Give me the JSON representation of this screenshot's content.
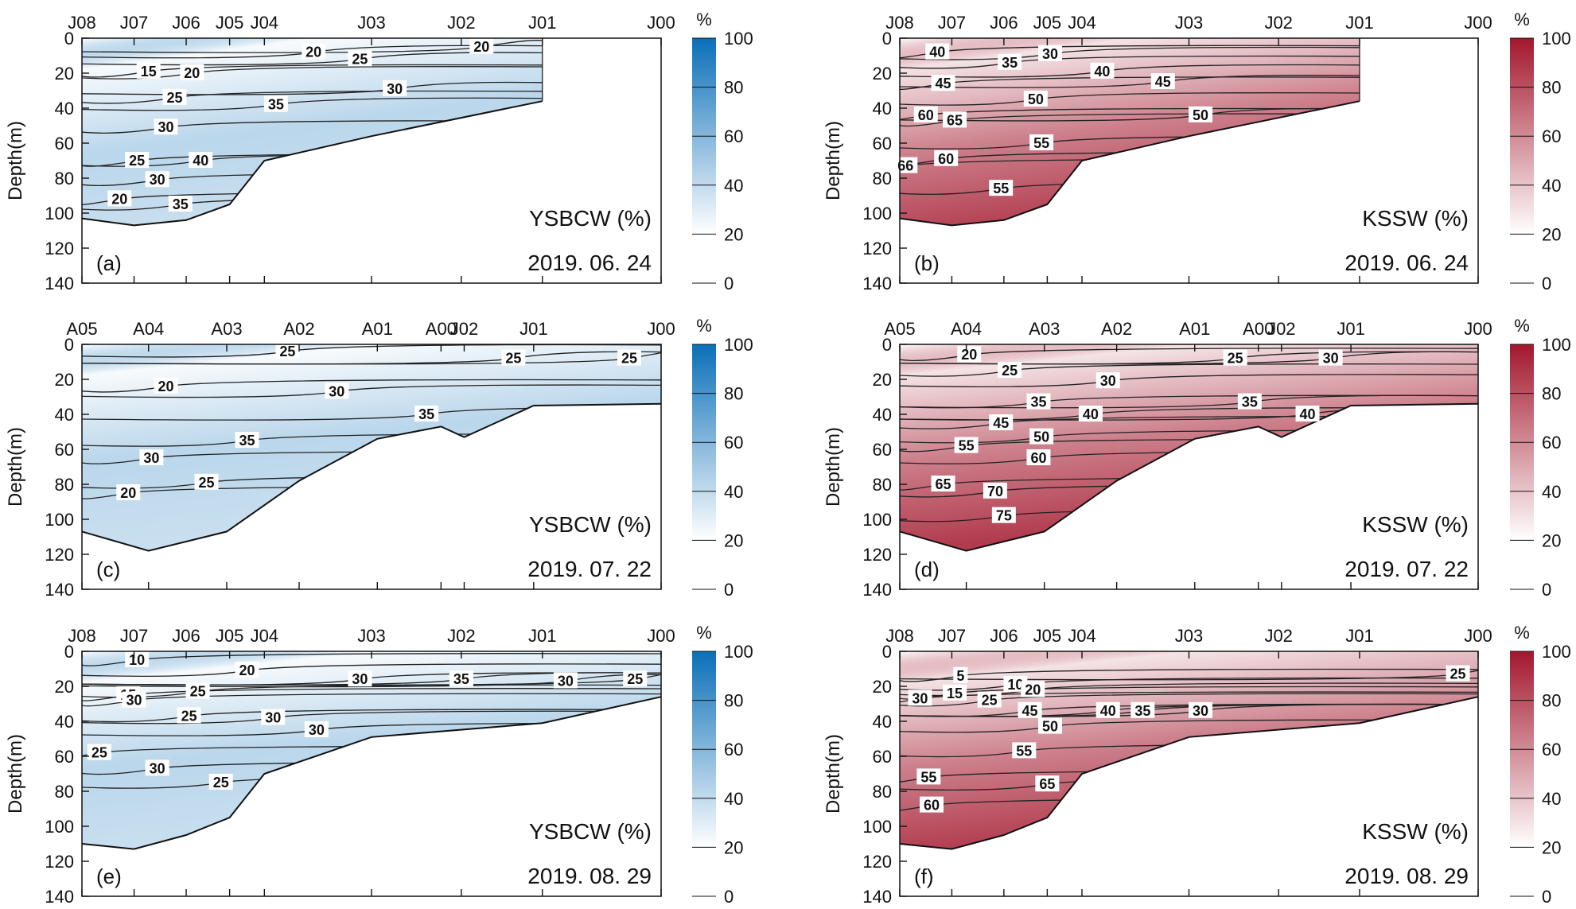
{
  "figure": {
    "colorbar_unit": "%",
    "colorbar_ticks": [
      "100",
      "80",
      "60",
      "40",
      "20",
      "0"
    ],
    "palettes": {
      "blue": [
        "#ffffff",
        "#0a6fb8"
      ],
      "red": [
        "#ffffff",
        "#a3172d"
      ]
    }
  },
  "chart_data": [
    {
      "panel": "(a)",
      "type": "heatmap",
      "palette": "blue",
      "variable": "YSBCW (%)",
      "date": "2019. 06. 24",
      "ylabel": "Depth(m)",
      "ylim": [
        0,
        140
      ],
      "yticks": [
        "0",
        "20",
        "40",
        "60",
        "80",
        "100",
        "120",
        "140"
      ],
      "stations": [
        "J08",
        "J07",
        "J06",
        "J05",
        "J04",
        "J03",
        "J02",
        "J01",
        "J00"
      ],
      "station_positions": [
        0,
        0.09,
        0.18,
        0.255,
        0.315,
        0.5,
        0.655,
        0.795,
        1.0
      ],
      "data_extent": 0.795,
      "bottom_profile": [
        [
          0,
          103
        ],
        [
          0.09,
          107
        ],
        [
          0.18,
          104
        ],
        [
          0.255,
          95
        ],
        [
          0.315,
          70
        ],
        [
          0.5,
          56
        ],
        [
          0.795,
          36
        ]
      ],
      "contour_labels": [
        {
          "text": "15",
          "s": 0.115,
          "d": 19
        },
        {
          "text": "20",
          "s": 0.19,
          "d": 20
        },
        {
          "text": "20",
          "s": 0.4,
          "d": 8
        },
        {
          "text": "20",
          "s": 0.69,
          "d": 5
        },
        {
          "text": "25",
          "s": 0.48,
          "d": 12
        },
        {
          "text": "25",
          "s": 0.16,
          "d": 34
        },
        {
          "text": "30",
          "s": 0.54,
          "d": 29
        },
        {
          "text": "30",
          "s": 0.145,
          "d": 51
        },
        {
          "text": "35",
          "s": 0.335,
          "d": 38
        },
        {
          "text": "40",
          "s": 0.205,
          "d": 70
        },
        {
          "text": "25",
          "s": 0.095,
          "d": 70
        },
        {
          "text": "30",
          "s": 0.13,
          "d": 81
        },
        {
          "text": "35",
          "s": 0.17,
          "d": 95
        },
        {
          "text": "20",
          "s": 0.065,
          "d": 92
        }
      ]
    },
    {
      "panel": "(b)",
      "type": "heatmap",
      "palette": "red",
      "variable": "KSSW (%)",
      "date": "2019. 06. 24",
      "ylabel": "Depth(m)",
      "ylim": [
        0,
        140
      ],
      "yticks": [
        "0",
        "20",
        "40",
        "60",
        "80",
        "100",
        "120",
        "140"
      ],
      "stations": [
        "J08",
        "J07",
        "J06",
        "J05",
        "J04",
        "J03",
        "J02",
        "J01",
        "J00"
      ],
      "station_positions": [
        0,
        0.09,
        0.18,
        0.255,
        0.315,
        0.5,
        0.655,
        0.795,
        1.0
      ],
      "data_extent": 0.795,
      "bottom_profile": [
        [
          0,
          103
        ],
        [
          0.09,
          107
        ],
        [
          0.18,
          104
        ],
        [
          0.255,
          95
        ],
        [
          0.315,
          70
        ],
        [
          0.5,
          56
        ],
        [
          0.795,
          36
        ]
      ],
      "contour_labels": [
        {
          "text": "40",
          "s": 0.065,
          "d": 8
        },
        {
          "text": "35",
          "s": 0.19,
          "d": 14
        },
        {
          "text": "30",
          "s": 0.26,
          "d": 9
        },
        {
          "text": "45",
          "s": 0.075,
          "d": 26
        },
        {
          "text": "40",
          "s": 0.35,
          "d": 19
        },
        {
          "text": "45",
          "s": 0.455,
          "d": 25
        },
        {
          "text": "50",
          "s": 0.235,
          "d": 35
        },
        {
          "text": "50",
          "s": 0.52,
          "d": 44
        },
        {
          "text": "60",
          "s": 0.045,
          "d": 44
        },
        {
          "text": "65",
          "s": 0.095,
          "d": 47
        },
        {
          "text": "55",
          "s": 0.245,
          "d": 60
        },
        {
          "text": "60",
          "s": 0.08,
          "d": 69
        },
        {
          "text": "66",
          "s": 0.01,
          "d": 73
        },
        {
          "text": "55",
          "s": 0.175,
          "d": 86
        }
      ]
    },
    {
      "panel": "(c)",
      "type": "heatmap",
      "palette": "blue",
      "variable": "YSBCW (%)",
      "date": "2019. 07. 22",
      "ylabel": "Depth(m)",
      "ylim": [
        0,
        140
      ],
      "yticks": [
        "0",
        "20",
        "40",
        "60",
        "80",
        "100",
        "120",
        "140"
      ],
      "stations": [
        "A05",
        "A04",
        "A03",
        "A02",
        "A01",
        "A00",
        "J02",
        "J01",
        "J00"
      ],
      "station_positions": [
        0,
        0.115,
        0.25,
        0.375,
        0.51,
        0.62,
        0.66,
        0.78,
        1.0
      ],
      "data_extent": 1.0,
      "bottom_profile": [
        [
          0,
          107
        ],
        [
          0.115,
          118
        ],
        [
          0.25,
          107
        ],
        [
          0.375,
          78
        ],
        [
          0.51,
          54
        ],
        [
          0.62,
          47
        ],
        [
          0.66,
          53
        ],
        [
          0.78,
          35
        ],
        [
          1.0,
          34
        ]
      ],
      "contour_labels": [
        {
          "text": "25",
          "s": 0.355,
          "d": 4
        },
        {
          "text": "25",
          "s": 0.745,
          "d": 8
        },
        {
          "text": "25",
          "s": 0.945,
          "d": 8
        },
        {
          "text": "20",
          "s": 0.145,
          "d": 24
        },
        {
          "text": "30",
          "s": 0.44,
          "d": 27
        },
        {
          "text": "35",
          "s": 0.595,
          "d": 40
        },
        {
          "text": "35",
          "s": 0.285,
          "d": 55
        },
        {
          "text": "30",
          "s": 0.12,
          "d": 65
        },
        {
          "text": "25",
          "s": 0.215,
          "d": 79
        },
        {
          "text": "20",
          "s": 0.08,
          "d": 85
        }
      ]
    },
    {
      "panel": "(d)",
      "type": "heatmap",
      "palette": "red",
      "variable": "KSSW (%)",
      "date": "2019. 07. 22",
      "ylabel": "Depth(m)",
      "ylim": [
        0,
        140
      ],
      "yticks": [
        "0",
        "20",
        "40",
        "60",
        "80",
        "100",
        "120",
        "140"
      ],
      "stations": [
        "A05",
        "A04",
        "A03",
        "A02",
        "A01",
        "A00",
        "J02",
        "J01",
        "J00"
      ],
      "station_positions": [
        0,
        0.115,
        0.25,
        0.375,
        0.51,
        0.62,
        0.66,
        0.78,
        1.0
      ],
      "data_extent": 1.0,
      "bottom_profile": [
        [
          0,
          107
        ],
        [
          0.115,
          118
        ],
        [
          0.25,
          107
        ],
        [
          0.375,
          78
        ],
        [
          0.51,
          54
        ],
        [
          0.62,
          47
        ],
        [
          0.66,
          53
        ],
        [
          0.78,
          35
        ],
        [
          1.0,
          34
        ]
      ],
      "contour_labels": [
        {
          "text": "20",
          "s": 0.12,
          "d": 6
        },
        {
          "text": "25",
          "s": 0.19,
          "d": 15
        },
        {
          "text": "25",
          "s": 0.58,
          "d": 8
        },
        {
          "text": "30",
          "s": 0.745,
          "d": 8
        },
        {
          "text": "30",
          "s": 0.36,
          "d": 21
        },
        {
          "text": "35",
          "s": 0.24,
          "d": 33
        },
        {
          "text": "35",
          "s": 0.605,
          "d": 33
        },
        {
          "text": "40",
          "s": 0.33,
          "d": 40
        },
        {
          "text": "40",
          "s": 0.705,
          "d": 40
        },
        {
          "text": "45",
          "s": 0.175,
          "d": 45
        },
        {
          "text": "50",
          "s": 0.245,
          "d": 53
        },
        {
          "text": "55",
          "s": 0.115,
          "d": 58
        },
        {
          "text": "60",
          "s": 0.24,
          "d": 65
        },
        {
          "text": "65",
          "s": 0.075,
          "d": 80
        },
        {
          "text": "70",
          "s": 0.165,
          "d": 84
        },
        {
          "text": "75",
          "s": 0.18,
          "d": 98
        }
      ]
    },
    {
      "panel": "(e)",
      "type": "heatmap",
      "palette": "blue",
      "variable": "YSBCW (%)",
      "date": "2019. 08. 29",
      "ylabel": "Depth(m)",
      "ylim": [
        0,
        140
      ],
      "yticks": [
        "0",
        "20",
        "40",
        "60",
        "80",
        "100",
        "120",
        "140"
      ],
      "stations": [
        "J08",
        "J07",
        "J06",
        "J05",
        "J04",
        "J03",
        "J02",
        "J01",
        "J00"
      ],
      "station_positions": [
        0,
        0.09,
        0.18,
        0.255,
        0.315,
        0.5,
        0.655,
        0.795,
        1.0
      ],
      "data_extent": 1.0,
      "bottom_profile": [
        [
          0,
          110
        ],
        [
          0.09,
          113
        ],
        [
          0.18,
          105
        ],
        [
          0.255,
          95
        ],
        [
          0.315,
          70
        ],
        [
          0.5,
          49
        ],
        [
          0.795,
          41
        ],
        [
          1.0,
          26
        ]
      ],
      "contour_labels": [
        {
          "text": "10",
          "s": 0.095,
          "d": 5
        },
        {
          "text": "15",
          "s": 0.08,
          "d": 25
        },
        {
          "text": "30",
          "s": 0.09,
          "d": 28
        },
        {
          "text": "20",
          "s": 0.285,
          "d": 11
        },
        {
          "text": "25",
          "s": 0.2,
          "d": 23
        },
        {
          "text": "30",
          "s": 0.48,
          "d": 16
        },
        {
          "text": "35",
          "s": 0.655,
          "d": 16
        },
        {
          "text": "30",
          "s": 0.835,
          "d": 17
        },
        {
          "text": "25",
          "s": 0.955,
          "d": 16
        },
        {
          "text": "25",
          "s": 0.185,
          "d": 37
        },
        {
          "text": "30",
          "s": 0.33,
          "d": 38
        },
        {
          "text": "30",
          "s": 0.405,
          "d": 45
        },
        {
          "text": "25",
          "s": 0.03,
          "d": 58
        },
        {
          "text": "30",
          "s": 0.13,
          "d": 67
        },
        {
          "text": "25",
          "s": 0.24,
          "d": 75
        }
      ]
    },
    {
      "panel": "(f)",
      "type": "heatmap",
      "palette": "red",
      "variable": "KSSW (%)",
      "date": "2019. 08. 29",
      "ylabel": "Depth(m)",
      "ylim": [
        0,
        140
      ],
      "yticks": [
        "0",
        "20",
        "40",
        "60",
        "80",
        "100",
        "120",
        "140"
      ],
      "stations": [
        "J08",
        "J07",
        "J06",
        "J05",
        "J04",
        "J03",
        "J02",
        "J01",
        "J00"
      ],
      "station_positions": [
        0,
        0.09,
        0.18,
        0.255,
        0.315,
        0.5,
        0.655,
        0.795,
        1.0
      ],
      "data_extent": 1.0,
      "bottom_profile": [
        [
          0,
          110
        ],
        [
          0.09,
          113
        ],
        [
          0.18,
          105
        ],
        [
          0.255,
          95
        ],
        [
          0.315,
          70
        ],
        [
          0.5,
          49
        ],
        [
          0.795,
          41
        ],
        [
          1.0,
          26
        ]
      ],
      "contour_labels": [
        {
          "text": "5",
          "s": 0.105,
          "d": 14
        },
        {
          "text": "10",
          "s": 0.2,
          "d": 19
        },
        {
          "text": "20",
          "s": 0.23,
          "d": 22
        },
        {
          "text": "15",
          "s": 0.095,
          "d": 24
        },
        {
          "text": "30",
          "s": 0.035,
          "d": 27
        },
        {
          "text": "25",
          "s": 0.155,
          "d": 28
        },
        {
          "text": "45",
          "s": 0.225,
          "d": 34
        },
        {
          "text": "40",
          "s": 0.36,
          "d": 34
        },
        {
          "text": "35",
          "s": 0.42,
          "d": 34
        },
        {
          "text": "30",
          "s": 0.52,
          "d": 34
        },
        {
          "text": "50",
          "s": 0.26,
          "d": 43
        },
        {
          "text": "55",
          "s": 0.215,
          "d": 57
        },
        {
          "text": "55",
          "s": 0.05,
          "d": 72
        },
        {
          "text": "65",
          "s": 0.255,
          "d": 76
        },
        {
          "text": "60",
          "s": 0.055,
          "d": 88
        },
        {
          "text": "25",
          "s": 0.965,
          "d": 13
        }
      ]
    }
  ]
}
